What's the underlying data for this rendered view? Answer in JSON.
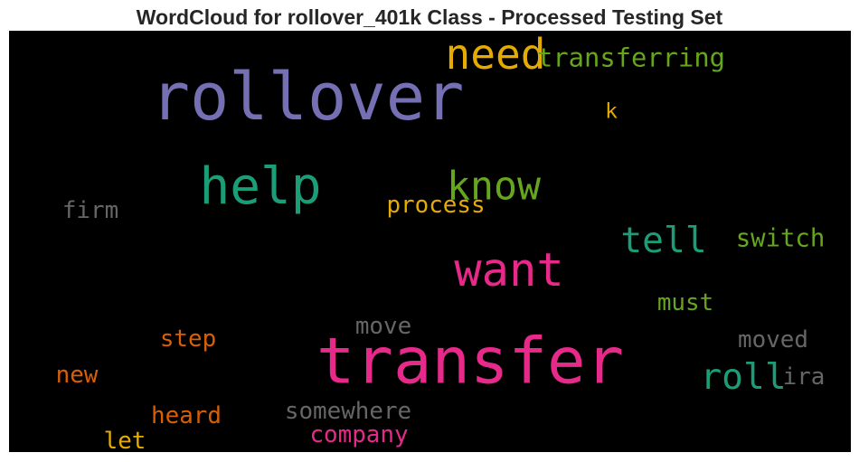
{
  "title": "WordCloud for rollover_401k Class - Processed Testing Set",
  "chart_data": {
    "type": "wordcloud",
    "background": "#000000",
    "palette": {
      "purple": "#7570b3",
      "teal": "#1b9e77",
      "pink": "#e7298a",
      "gold": "#e6ab02",
      "orange": "#d95f02",
      "green": "#66a61e",
      "gray": "#666666"
    },
    "words": [
      {
        "text": "rollover",
        "weight": 100,
        "color": "#7570b3"
      },
      {
        "text": "transfer",
        "weight": 98,
        "color": "#e7298a"
      },
      {
        "text": "help",
        "weight": 78,
        "color": "#1b9e77"
      },
      {
        "text": "want",
        "weight": 70,
        "color": "#e7298a"
      },
      {
        "text": "need",
        "weight": 64,
        "color": "#e6ab02"
      },
      {
        "text": "know",
        "weight": 60,
        "color": "#66a61e"
      },
      {
        "text": "tell",
        "weight": 55,
        "color": "#1b9e77"
      },
      {
        "text": "roll",
        "weight": 55,
        "color": "#1b9e77"
      },
      {
        "text": "transferring",
        "weight": 40,
        "color": "#66a61e"
      },
      {
        "text": "switch",
        "weight": 38,
        "color": "#66a61e"
      },
      {
        "text": "must",
        "weight": 36,
        "color": "#66a61e"
      },
      {
        "text": "moved",
        "weight": 36,
        "color": "#666666"
      },
      {
        "text": "firm",
        "weight": 36,
        "color": "#666666"
      },
      {
        "text": "process",
        "weight": 36,
        "color": "#e6ab02"
      },
      {
        "text": "move",
        "weight": 36,
        "color": "#666666"
      },
      {
        "text": "step",
        "weight": 36,
        "color": "#d95f02"
      },
      {
        "text": "new",
        "weight": 36,
        "color": "#d95f02"
      },
      {
        "text": "heard",
        "weight": 36,
        "color": "#d95f02"
      },
      {
        "text": "somewhere",
        "weight": 36,
        "color": "#666666"
      },
      {
        "text": "company",
        "weight": 36,
        "color": "#e7298a"
      },
      {
        "text": "ira",
        "weight": 36,
        "color": "#666666"
      },
      {
        "text": "let",
        "weight": 36,
        "color": "#e6ab02"
      },
      {
        "text": "k",
        "weight": 32,
        "color": "#e6ab02"
      }
    ]
  }
}
